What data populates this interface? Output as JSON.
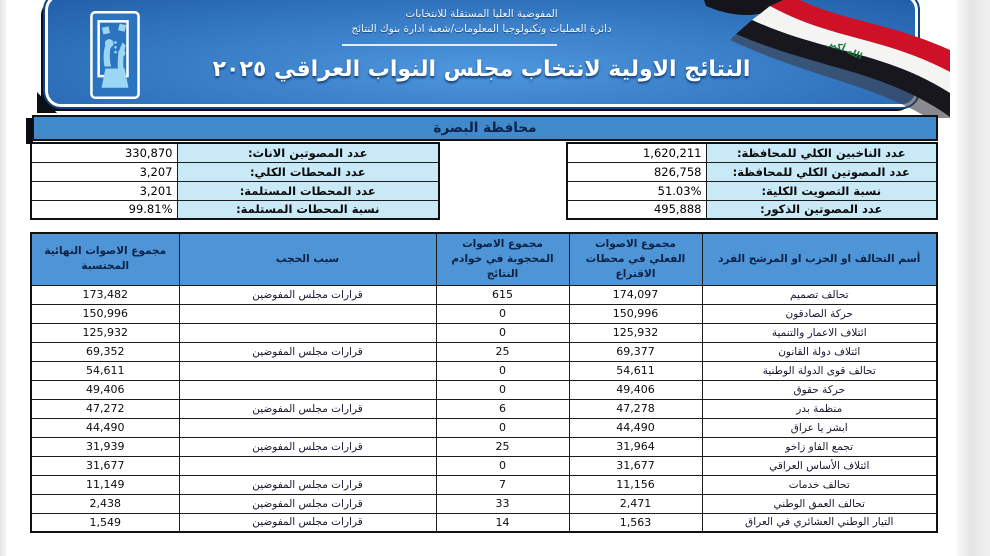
{
  "banner": {
    "org_line1": "المفوضية العليا المستقلة للانتخابات",
    "org_line2": "دائرة العمليات وتكنولوجيا المعلومات/شعبة ادارة بنوك النتائج",
    "title": "النتائج الاولية لانتخاب مجلس النواب العراقي ٢٠٢٥",
    "flag_takbir": "الله أكبر"
  },
  "colors": {
    "banner_blue": "#3579c3",
    "bar_blue": "#4089cb",
    "header_blue": "#4e95d8",
    "label_light_blue": "#c9e9f7",
    "flag_red": "#ce1126",
    "flag_green": "#1d7a3e"
  },
  "governorate_bar": {
    "label": "محافظة البصرة"
  },
  "summary_right": {
    "rows": [
      {
        "label": "عدد الناخبين الكلي للمحافظة:",
        "value": "1,620,211"
      },
      {
        "label": "عدد المصوتين الكلي للمحافظة:",
        "value": "826,758"
      },
      {
        "label": "نسبة التصويت الكلية:",
        "value": "51.03%"
      },
      {
        "label": "عدد المصوتين الذكور:",
        "value": "495,888"
      }
    ]
  },
  "summary_left": {
    "rows": [
      {
        "label": "عدد المصوتين الاناث:",
        "value": "330,870"
      },
      {
        "label": "عدد المحطات الكلي:",
        "value": "3,207"
      },
      {
        "label": "عدد المحطات المستلمة:",
        "value": "3,201"
      },
      {
        "label": "نسبة المحطات المستلمة:",
        "value": "99.81%"
      }
    ]
  },
  "results_table": {
    "headers": [
      "أسم التحالف او الحزب او المرشح الفرد",
      "مجموع الاصوات الفعلي في محطات الاقتراع",
      "مجموع الاصوات المحجوبة في خوادم النتائج",
      "سبب الحجب",
      "مجموع الاصوات النهائية المحتسبة"
    ],
    "rows": [
      [
        "تحالف تصميم",
        "174,097",
        "615",
        "قرارات مجلس المفوضين",
        "173,482"
      ],
      [
        "حركة الصادقون",
        "150,996",
        "0",
        "",
        "150,996"
      ],
      [
        "ائتلاف الاعمار والتنمية",
        "125,932",
        "0",
        "",
        "125,932"
      ],
      [
        "ائتلاف دولة القانون",
        "69,377",
        "25",
        "قرارات مجلس المفوضين",
        "69,352"
      ],
      [
        "تحالف قوى الدولة الوطنية",
        "54,611",
        "0",
        "",
        "54,611"
      ],
      [
        "حركة حقوق",
        "49,406",
        "0",
        "",
        "49,406"
      ],
      [
        "منظمة بدر",
        "47,278",
        "6",
        "قرارات مجلس المفوضين",
        "47,272"
      ],
      [
        "ابشر يا عراق",
        "44,490",
        "0",
        "",
        "44,490"
      ],
      [
        "تجمع الفاو زاخو",
        "31,964",
        "25",
        "قرارات مجلس المفوضين",
        "31,939"
      ],
      [
        "ائتلاف الأساس العراقي",
        "31,677",
        "0",
        "",
        "31,677"
      ],
      [
        "تحالف خدمات",
        "11,156",
        "7",
        "قرارات مجلس المفوضين",
        "11,149"
      ],
      [
        "تحالف العمق الوطني",
        "2,471",
        "33",
        "قرارات مجلس المفوضين",
        "2,438"
      ],
      [
        "التيار الوطني العشائري في العراق",
        "1,563",
        "14",
        "قرارات مجلس المفوضين",
        "1,549"
      ]
    ]
  }
}
